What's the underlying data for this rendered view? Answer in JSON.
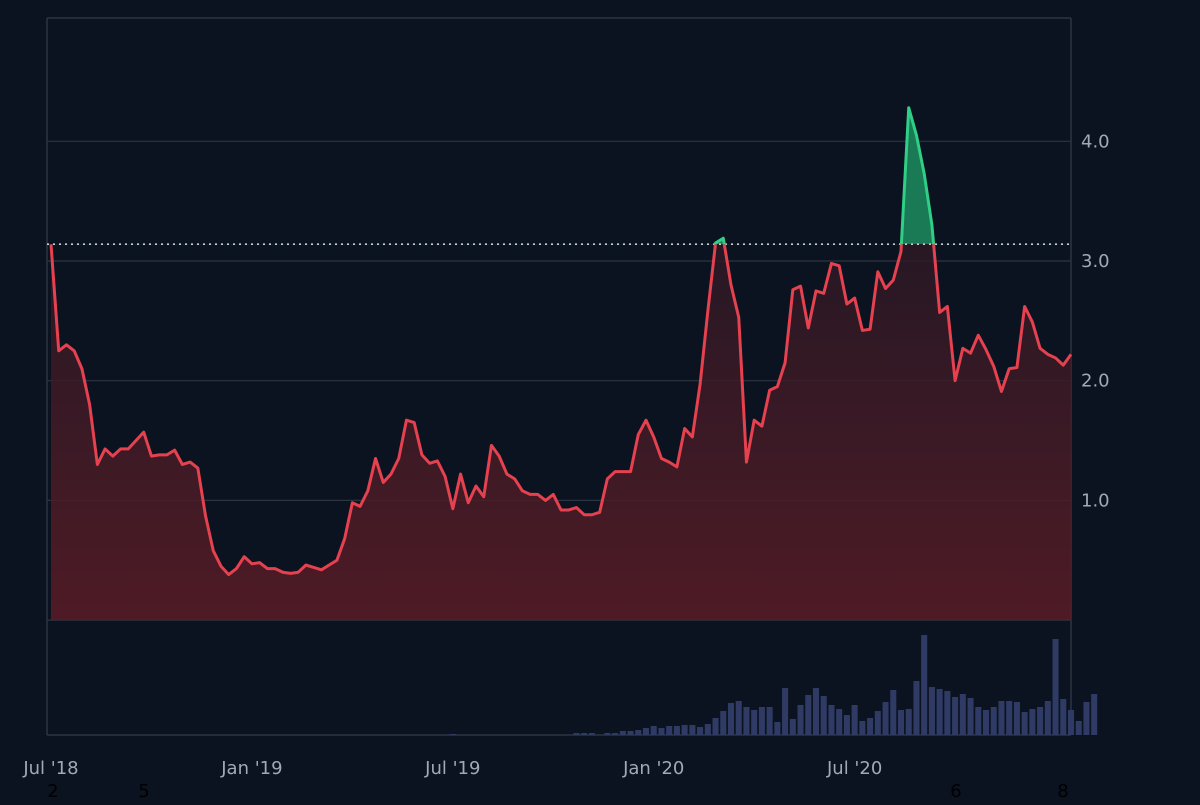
{
  "colors": {
    "background": "#0c1320",
    "grid": "#2c3442",
    "line_below": "#e5414f",
    "line_above": "#2fcf86",
    "fill_below_top": "#1a1825",
    "fill_below_bottom": "#5a1c26",
    "fill_above": "#1a7a55",
    "volume": "#2f3b64",
    "reference": "#c9ced6",
    "axis_text": "#a2a9b6",
    "footer_text": "#000000"
  },
  "chart_data": {
    "type": "line",
    "title": "",
    "xlabel": "",
    "ylabel": "",
    "x_ticks": [
      "Jul '18",
      "Jan '19",
      "Jul '19",
      "Jan '20",
      "Jul '20"
    ],
    "x_tick_positions": [
      0,
      26,
      52,
      78,
      104
    ],
    "y_ticks": [
      "1.0",
      "2.0",
      "3.0",
      "4.0"
    ],
    "y_tick_values": [
      1.0,
      2.0,
      3.0,
      4.0
    ],
    "ylim": [
      -0.96,
      5.03
    ],
    "reference_value": 3.14,
    "footer_numbers": [
      "2",
      "5",
      "6",
      "8"
    ],
    "grid": true,
    "legend": "none",
    "series": [
      {
        "values": [
          3.14,
          2.25,
          2.3,
          2.25,
          2.1,
          1.8,
          1.3,
          1.43,
          1.37,
          1.43,
          1.43,
          1.5,
          1.57,
          1.37,
          1.38,
          1.38,
          1.42,
          1.3,
          1.32,
          1.27,
          0.87,
          0.58,
          0.45,
          0.38,
          0.43,
          0.53,
          0.47,
          0.48,
          0.43,
          0.43,
          0.4,
          0.39,
          0.4,
          0.46,
          0.44,
          0.42,
          0.46,
          0.5,
          0.68,
          0.98,
          0.95,
          1.08,
          1.35,
          1.15,
          1.22,
          1.35,
          1.67,
          1.65,
          1.38,
          1.31,
          1.33,
          1.2,
          0.93,
          1.22,
          0.98,
          1.12,
          1.03,
          1.46,
          1.37,
          1.22,
          1.18,
          1.08,
          1.05,
          1.05,
          1.0,
          1.05,
          0.92,
          0.92,
          0.94,
          0.88,
          0.88,
          0.9,
          1.18,
          1.24,
          1.24,
          1.24,
          1.55,
          1.67,
          1.53,
          1.35,
          1.32,
          1.28,
          1.6,
          1.53,
          1.97,
          2.58,
          3.15,
          3.19,
          2.8,
          2.53,
          1.32,
          1.67,
          1.62,
          1.92,
          1.95,
          2.15,
          2.76,
          2.79,
          2.44,
          2.75,
          2.73,
          2.98,
          2.96,
          2.64,
          2.69,
          2.42,
          2.43,
          2.91,
          2.77,
          2.84,
          3.08,
          4.28,
          4.05,
          3.73,
          3.3,
          2.57,
          2.62,
          2.0,
          2.27,
          2.23,
          2.38,
          2.26,
          2.12,
          1.91,
          2.1,
          2.11,
          2.62,
          2.49,
          2.27,
          2.22,
          2.19,
          2.13,
          2.22
        ]
      },
      {
        "type": "bar",
        "values": [
          0,
          0,
          0,
          0,
          0,
          0,
          0,
          0,
          0,
          0,
          0,
          0,
          0,
          0,
          0,
          0,
          0,
          0,
          0,
          0,
          0,
          0,
          0,
          0,
          0,
          0,
          0,
          0,
          0,
          0,
          0,
          0,
          0,
          0,
          0,
          0,
          0,
          0,
          0,
          0,
          0,
          0,
          0,
          0,
          0,
          0,
          0,
          0,
          0,
          0,
          0,
          0,
          0.01,
          0,
          0,
          0,
          0,
          0,
          0,
          0,
          0,
          0,
          0,
          0,
          0,
          0,
          0,
          0,
          0.02,
          0.02,
          0.02,
          0,
          0.02,
          0.02,
          0.04,
          0.04,
          0.05,
          0.07,
          0.09,
          0.07,
          0.09,
          0.09,
          0.1,
          0.1,
          0.08,
          0.11,
          0.17,
          0.24,
          0.32,
          0.34,
          0.28,
          0.25,
          0.28,
          0.28,
          0.13,
          0.47,
          0.16,
          0.3,
          0.4,
          0.47,
          0.39,
          0.3,
          0.26,
          0.2,
          0.3,
          0.14,
          0.17,
          0.24,
          0.33,
          0.45,
          0.25,
          0.26,
          0.54,
          1.0,
          0.48,
          0.46,
          0.44,
          0.38,
          0.41,
          0.37,
          0.28,
          0.25,
          0.28,
          0.34,
          0.34,
          0.33,
          0.23,
          0.26,
          0.28,
          0.34,
          0.96,
          0.36,
          0.25,
          0.14,
          0.33,
          0.41
        ]
      }
    ]
  }
}
